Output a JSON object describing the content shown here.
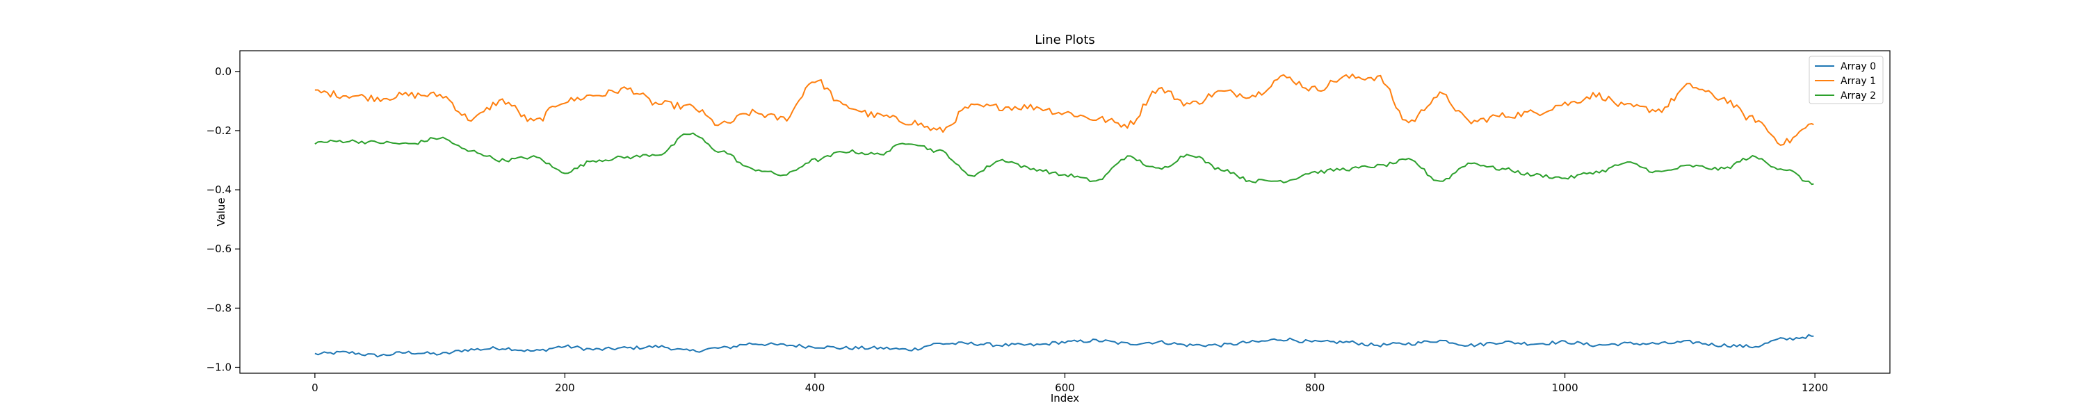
{
  "chart_data": {
    "type": "line",
    "title": "Line Plots",
    "xlabel": "Index",
    "ylabel": "Value",
    "xlim": [
      -60,
      1260
    ],
    "ylim": [
      -1.02,
      0.07
    ],
    "x_ticks": [
      0,
      200,
      400,
      600,
      800,
      1000,
      1200
    ],
    "x_tick_labels": [
      "0",
      "200",
      "400",
      "600",
      "800",
      "1000",
      "1200"
    ],
    "y_ticks": [
      0.0,
      -0.2,
      -0.4,
      -0.6,
      -0.8,
      -1.0
    ],
    "y_tick_labels": [
      "0.0",
      "−0.2",
      "−0.4",
      "−0.6",
      "−0.8",
      "−1.0"
    ],
    "grid": false,
    "legend_position": "top-right",
    "x": [
      0,
      25,
      50,
      75,
      100,
      125,
      150,
      175,
      200,
      225,
      250,
      275,
      300,
      325,
      350,
      375,
      400,
      425,
      450,
      475,
      500,
      525,
      550,
      575,
      600,
      625,
      650,
      675,
      700,
      725,
      750,
      775,
      800,
      825,
      850,
      875,
      900,
      925,
      950,
      975,
      1000,
      1025,
      1050,
      1075,
      1100,
      1125,
      1150,
      1175,
      1199
    ],
    "series": [
      {
        "name": "Array 0",
        "color": "#1f77b4",
        "values": [
          -0.955,
          -0.95,
          -0.96,
          -0.95,
          -0.955,
          -0.94,
          -0.935,
          -0.945,
          -0.93,
          -0.94,
          -0.935,
          -0.93,
          -0.945,
          -0.935,
          -0.92,
          -0.925,
          -0.93,
          -0.935,
          -0.935,
          -0.94,
          -0.92,
          -0.92,
          -0.925,
          -0.925,
          -0.915,
          -0.91,
          -0.92,
          -0.915,
          -0.925,
          -0.925,
          -0.915,
          -0.905,
          -0.915,
          -0.915,
          -0.925,
          -0.92,
          -0.91,
          -0.925,
          -0.915,
          -0.92,
          -0.915,
          -0.925,
          -0.92,
          -0.92,
          -0.915,
          -0.925,
          -0.93,
          -0.905,
          -0.895
        ]
      },
      {
        "name": "Array 1",
        "color": "#ff7f0e",
        "values": [
          -0.07,
          -0.08,
          -0.09,
          -0.08,
          -0.08,
          -0.16,
          -0.1,
          -0.17,
          -0.1,
          -0.08,
          -0.06,
          -0.11,
          -0.12,
          -0.18,
          -0.14,
          -0.16,
          -0.03,
          -0.12,
          -0.15,
          -0.17,
          -0.2,
          -0.12,
          -0.12,
          -0.12,
          -0.14,
          -0.16,
          -0.18,
          -0.06,
          -0.11,
          -0.07,
          -0.08,
          -0.02,
          -0.06,
          -0.02,
          -0.02,
          -0.17,
          -0.08,
          -0.17,
          -0.15,
          -0.14,
          -0.11,
          -0.08,
          -0.12,
          -0.13,
          -0.05,
          -0.09,
          -0.16,
          -0.24,
          -0.18
        ]
      },
      {
        "name": "Array 2",
        "color": "#2ca02c",
        "values": [
          -0.24,
          -0.235,
          -0.24,
          -0.245,
          -0.225,
          -0.27,
          -0.3,
          -0.29,
          -0.34,
          -0.3,
          -0.29,
          -0.28,
          -0.21,
          -0.27,
          -0.33,
          -0.35,
          -0.3,
          -0.27,
          -0.28,
          -0.24,
          -0.27,
          -0.35,
          -0.3,
          -0.33,
          -0.35,
          -0.37,
          -0.29,
          -0.33,
          -0.28,
          -0.33,
          -0.37,
          -0.37,
          -0.34,
          -0.33,
          -0.32,
          -0.3,
          -0.37,
          -0.31,
          -0.33,
          -0.35,
          -0.36,
          -0.34,
          -0.31,
          -0.34,
          -0.32,
          -0.33,
          -0.29,
          -0.33,
          -0.38
        ]
      }
    ]
  }
}
